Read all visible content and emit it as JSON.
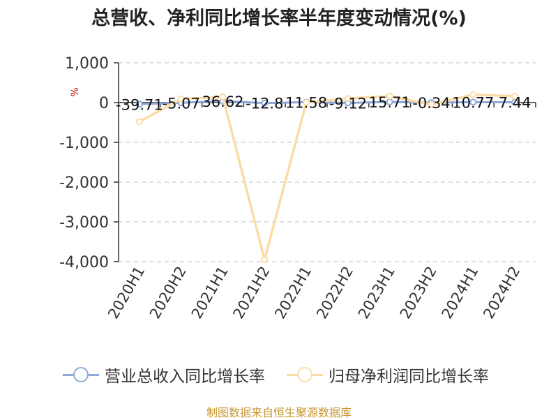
{
  "colors": {
    "revenue": "#8fa8d8",
    "profit": "#fcdca6",
    "grid": "#cccccc",
    "axis": "#333333",
    "source": "#c8962e",
    "unit": "#cc0000"
  },
  "chart_data": {
    "type": "line",
    "title": "总营收、净利同比增长率半年度变动情况(%)",
    "ylabel": "%",
    "categories": [
      "2020H1",
      "2020H2",
      "2021H1",
      "2021H2",
      "2022H1",
      "2022H2",
      "2023H1",
      "2023H2",
      "2024H1",
      "2024H2"
    ],
    "ylim": [
      -4000,
      1000
    ],
    "yticks": [
      1000,
      0,
      -1000,
      -2000,
      -3000,
      -4000
    ],
    "ytick_labels": [
      "1,000",
      "0",
      "-1,000",
      "-2,000",
      "-3,000",
      "-4,000"
    ],
    "grid": true,
    "legend_position": "bottom",
    "series": [
      {
        "name": "营业总收入同比增长率",
        "values": [
          -39.71,
          -5.07,
          36.62,
          -12.8,
          11.58,
          -9.12,
          15.71,
          -0.34,
          10.77,
          7.44
        ],
        "labels": [
          "-39.71",
          "-5.07",
          "36.62",
          "-12.8",
          "11.58",
          "-9.12",
          "15.71",
          "-0.34",
          "10.77",
          "7.44"
        ]
      },
      {
        "name": "归母净利润同比增长率",
        "values": [
          -480,
          90,
          140,
          -3950,
          0,
          100,
          160,
          -50,
          200,
          160
        ],
        "labels": []
      }
    ]
  },
  "source": "制图数据来自恒生聚源数据库"
}
